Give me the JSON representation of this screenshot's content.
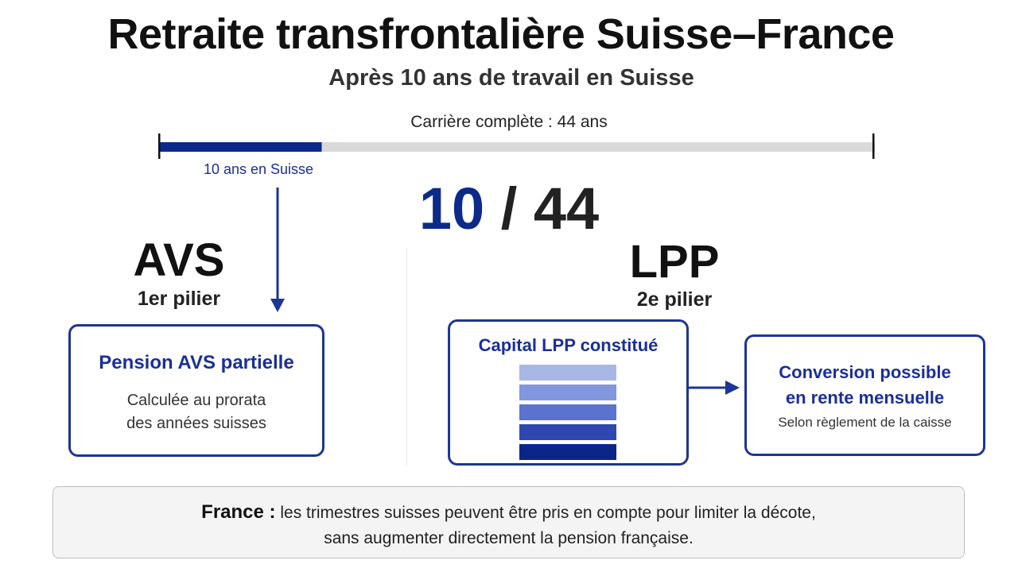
{
  "header": {
    "title": "Retraite transfrontalière Suisse–France",
    "subtitle": "Après 10 ans de travail en Suisse"
  },
  "timeline": {
    "label": "Carrière complète : 44 ans",
    "swiss_label": "10 ans en Suisse",
    "swiss_years": 10,
    "total_years": 44,
    "colors": {
      "swiss": "#0c2a8a",
      "remaining": "#d9d9d9"
    }
  },
  "ratio": {
    "numerator": "10",
    "separator": " / ",
    "denominator": "44"
  },
  "avs": {
    "title": "AVS",
    "subtitle": "1er pilier",
    "card": {
      "title": "Pension AVS partielle",
      "text_line1": "Calculée au prorata",
      "text_line2": "des années suisses"
    }
  },
  "lpp": {
    "title": "LPP",
    "subtitle": "2e pilier",
    "capital_card": {
      "title": "Capital LPP constitué"
    },
    "stack_colors": [
      "#a9b7e6",
      "#8096dd",
      "#5b73cf",
      "#2f47b1",
      "#0c2687"
    ],
    "conversion_card": {
      "title_line1": "Conversion possible",
      "title_line2": "en rente mensuelle",
      "text": "Selon règlement de la caisse"
    }
  },
  "france": {
    "label": "France :",
    "line1": " les trimestres suisses peuvent être pris en compte pour limiter la décote,",
    "line2": "sans augmenter directement la pension française."
  },
  "colors": {
    "accent": "#1d3596",
    "accent_text": "#1a2f9a"
  }
}
